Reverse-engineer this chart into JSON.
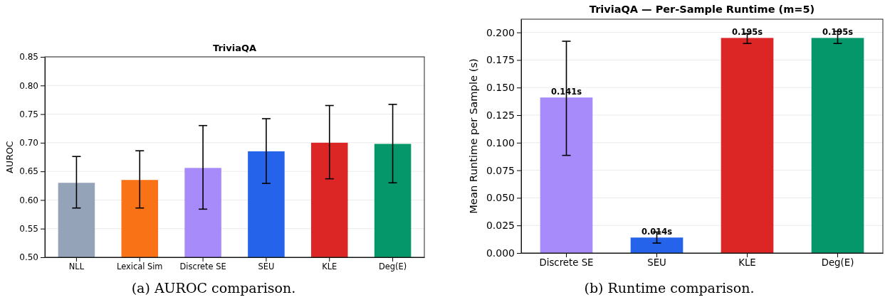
{
  "chart_data": [
    {
      "type": "bar",
      "title": "TriviaQA",
      "ylabel": "AUROC",
      "categories": [
        "NLL",
        "Lexical Sim",
        "Discrete SE",
        "SEU",
        "KLE",
        "Deg(E)"
      ],
      "values": [
        0.63,
        0.635,
        0.656,
        0.685,
        0.7,
        0.698
      ],
      "colors": [
        "#94a3b8",
        "#f97316",
        "#a78bfa",
        "#2563eb",
        "#dc2626",
        "#059669"
      ],
      "errors": [
        [
          0.586,
          0.676
        ],
        [
          0.586,
          0.686
        ],
        [
          0.584,
          0.73
        ],
        [
          0.629,
          0.742
        ],
        [
          0.637,
          0.765
        ],
        [
          0.63,
          0.767
        ]
      ],
      "ylim": [
        0.5,
        0.85
      ],
      "yticks": [
        {
          "value": 0.5,
          "label": "0.50"
        },
        {
          "value": 0.55,
          "label": "0.55"
        },
        {
          "value": 0.6,
          "label": "0.60"
        },
        {
          "value": 0.65,
          "label": "0.65"
        },
        {
          "value": 0.7,
          "label": "0.70"
        },
        {
          "value": 0.75,
          "label": "0.75"
        },
        {
          "value": 0.8,
          "label": "0.80"
        },
        {
          "value": 0.85,
          "label": "0.85"
        }
      ],
      "grid": "y",
      "annotations": [
        "(a) AUROC comparison."
      ]
    },
    {
      "type": "bar",
      "title": "TriviaQA — Per-Sample Runtime (m=5)",
      "ylabel": "Mean Runtime per Sample (s)",
      "categories": [
        "Discrete SE",
        "SEU",
        "KLE",
        "Deg(E)"
      ],
      "values": [
        0.141,
        0.014,
        0.195,
        0.195
      ],
      "colors": [
        "#a78bfa",
        "#2563eb",
        "#dc2626",
        "#059669"
      ],
      "errors": [
        [
          0.0885,
          0.192
        ],
        [
          0.009,
          0.019
        ],
        [
          0.19,
          0.199
        ],
        [
          0.19,
          0.201
        ]
      ],
      "value_labels": [
        "0.141s",
        "0.014s",
        "0.195s",
        "0.195s"
      ],
      "ylim": [
        0,
        0.212
      ],
      "yticks": [
        {
          "value": 0,
          "label": "0.000"
        },
        {
          "value": 0.025,
          "label": "0.025"
        },
        {
          "value": 0.05,
          "label": "0.050"
        },
        {
          "value": 0.075,
          "label": "0.075"
        },
        {
          "value": 0.1,
          "label": "0.100"
        },
        {
          "value": 0.125,
          "label": "0.125"
        },
        {
          "value": 0.15,
          "label": "0.150"
        },
        {
          "value": 0.175,
          "label": "0.175"
        },
        {
          "value": 0.2,
          "label": "0.200"
        }
      ],
      "grid": "y",
      "annotations": [
        "(b) Runtime comparison."
      ]
    }
  ]
}
